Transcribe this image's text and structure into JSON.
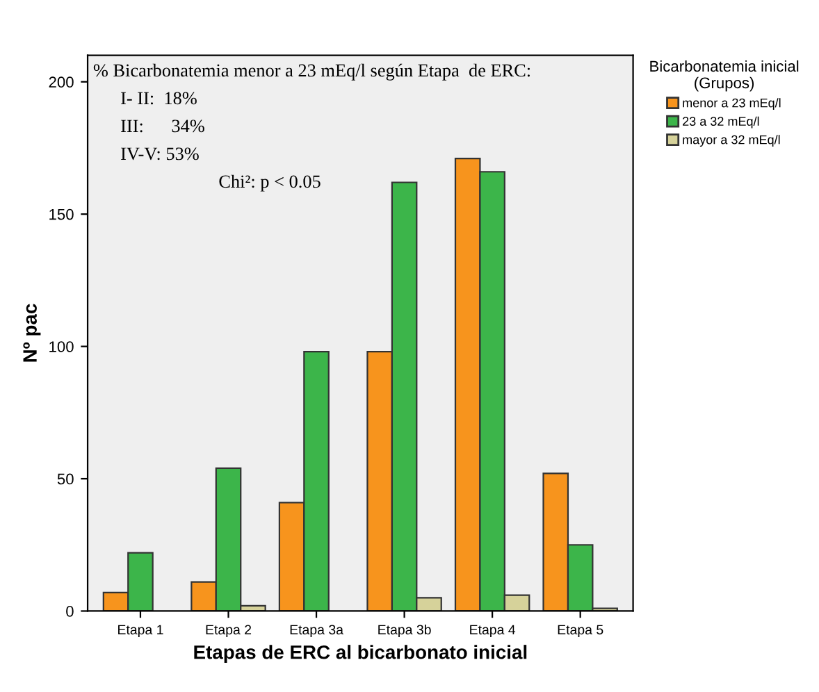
{
  "chart_data": {
    "type": "bar",
    "xlabel": "Etapas de ERC al bicarbonato inicial",
    "ylabel": "Nº pac",
    "legend_title": "Bicarbonatemia inicial\n(Grupos)",
    "categories": [
      "Etapa 1",
      "Etapa 2",
      "Etapa 3a",
      "Etapa 3b",
      "Etapa 4",
      "Etapa 5"
    ],
    "series": [
      {
        "name": "menor a 23 mEq/l",
        "color": "#f7941d",
        "values": [
          7,
          11,
          41,
          98,
          171,
          52
        ]
      },
      {
        "name": "23 a 32 mEq/l",
        "color": "#3cb54a",
        "values": [
          22,
          54,
          98,
          162,
          166,
          25
        ]
      },
      {
        "name": "mayor a 32 mEq/l",
        "color": "#d6d29a",
        "values": [
          null,
          2,
          null,
          5,
          6,
          1
        ]
      }
    ],
    "ylim": [
      0,
      210
    ],
    "yticks": [
      0,
      50,
      100,
      150,
      200
    ],
    "grid": false,
    "legend": "right",
    "annotations": [
      "% Bicarbonatemia menor a 23 mEq/l según Etapa  de ERC:",
      "I- II:  18%",
      "III:      34%",
      "IV-V: 53%",
      "Chi²: p < 0.05"
    ]
  }
}
